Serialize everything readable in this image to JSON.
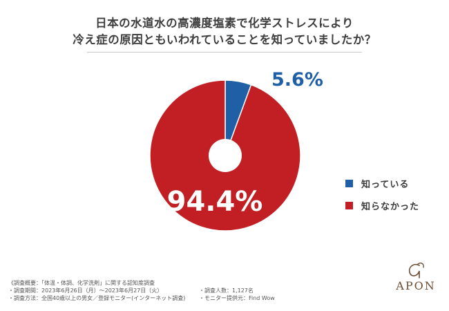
{
  "header": {
    "title_line1": "日本の水道水の高濃度塩素で化学ストレスにより",
    "title_line2": "冷え症の原因ともいわれていることを知っていましたか？"
  },
  "chart_data": {
    "type": "pie",
    "donut": true,
    "categories": [
      "知っている",
      "知らなかった"
    ],
    "values": [
      5.6,
      94.4
    ],
    "data_labels": [
      "5.6%",
      "94.4%"
    ],
    "colors": [
      "#1f5fa6",
      "#c21f25"
    ],
    "legend_position": "right"
  },
  "notes": {
    "summary": "《調査概要：「体温・体調、化学洗剤」に関する認知度調査",
    "period": "・調査期間：2023年6月26日（月）～2023年6月27日（火）",
    "method": "・調査方法：全国40歳以上の男女／登録モニター(インターネット調査)",
    "count": "・調査人数：1,127名",
    "provider": "・モニター提供元：Find Wow"
  },
  "brand": {
    "name": "APON"
  }
}
